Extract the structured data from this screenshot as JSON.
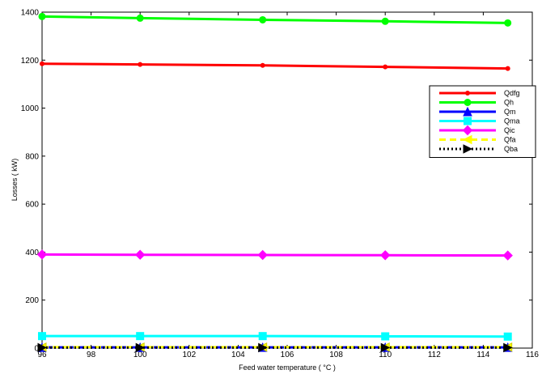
{
  "chart_data": {
    "type": "line",
    "xlabel": "Feed water  temperature ( °C )",
    "ylabel": "Losses ( kW)",
    "xlim": [
      96,
      116
    ],
    "ylim": [
      0,
      1400
    ],
    "xticks": [
      "96",
      "98",
      "100",
      "102",
      "104",
      "106",
      "108",
      "110",
      "112",
      "114",
      "116"
    ],
    "yticks": [
      "0",
      "200",
      "400",
      "600",
      "800",
      "1000",
      "1200",
      "1400"
    ],
    "x": [
      96,
      100,
      105,
      110,
      115
    ],
    "legend_position": "right",
    "grid": false,
    "series": [
      {
        "name": "Qdfg",
        "values": [
          1185,
          1182,
          1178,
          1172,
          1165
        ],
        "color": "#ff0000",
        "marker": "dot",
        "dash": "solid"
      },
      {
        "name": "Qh",
        "values": [
          1382,
          1375,
          1368,
          1362,
          1355
        ],
        "color": "#00ff00",
        "marker": "circle",
        "dash": "solid"
      },
      {
        "name": "Qm",
        "values": [
          3,
          3,
          3,
          3,
          3
        ],
        "color": "#0000ff",
        "marker": "triangle-up",
        "dash": "solid"
      },
      {
        "name": "Qma",
        "values": [
          50,
          50,
          50,
          49,
          48
        ],
        "color": "#00ffff",
        "marker": "square",
        "dash": "solid"
      },
      {
        "name": "Qic",
        "values": [
          390,
          389,
          388,
          387,
          386
        ],
        "color": "#ff00ff",
        "marker": "diamond",
        "dash": "solid"
      },
      {
        "name": "Qfa",
        "values": [
          4,
          4,
          4,
          4,
          4
        ],
        "color": "#ffff00",
        "marker": "triangle-left",
        "dash": "dashed"
      },
      {
        "name": "Qba",
        "values": [
          2,
          2,
          2,
          2,
          2
        ],
        "color": "#000000",
        "marker": "triangle-right",
        "dash": "dotted"
      }
    ]
  }
}
